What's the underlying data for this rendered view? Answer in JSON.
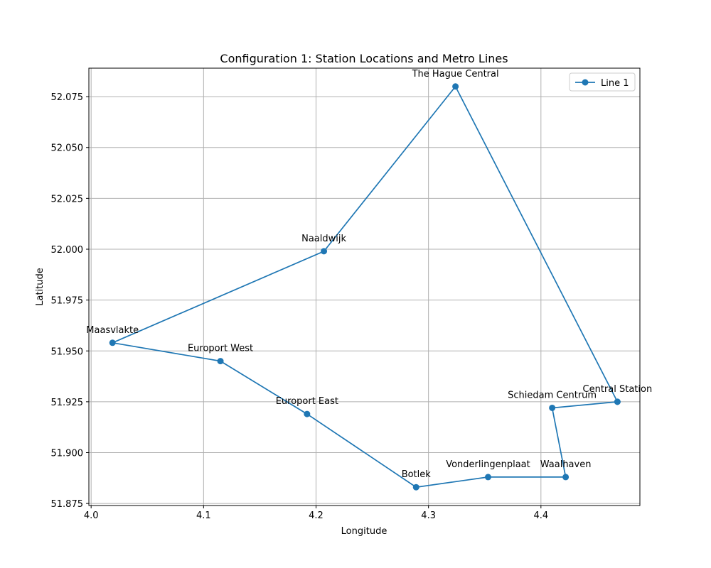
{
  "chart_data": {
    "type": "line",
    "title": "Configuration 1: Station Locations and Metro Lines",
    "xlabel": "Longitude",
    "ylabel": "Latitude",
    "xlim": [
      3.998,
      4.488
    ],
    "ylim": [
      51.874,
      52.089
    ],
    "x_ticks": [
      4.0,
      4.1,
      4.2,
      4.3,
      4.4
    ],
    "x_tick_labels": [
      "4.0",
      "4.1",
      "4.2",
      "4.3",
      "4.4"
    ],
    "y_ticks": [
      51.875,
      51.9,
      51.925,
      51.95,
      51.975,
      52.0,
      52.025,
      52.05,
      52.075
    ],
    "y_tick_labels": [
      "51.875",
      "51.900",
      "51.925",
      "51.950",
      "51.975",
      "52.000",
      "52.025",
      "52.050",
      "52.075"
    ],
    "grid": true,
    "legend_position": "top-right",
    "series": [
      {
        "name": "Line 1",
        "color": "#1f77b4",
        "marker": "circle",
        "points": [
          {
            "label": "Central Station",
            "x": 4.468,
            "y": 51.925
          },
          {
            "label": "Schiedam Centrum",
            "x": 4.41,
            "y": 51.922
          },
          {
            "label": "Waalhaven",
            "x": 4.422,
            "y": 51.888
          },
          {
            "label": "Vonderlingenplaat",
            "x": 4.353,
            "y": 51.888
          },
          {
            "label": "Botlek",
            "x": 4.289,
            "y": 51.883
          },
          {
            "label": "Europort East",
            "x": 4.192,
            "y": 51.919
          },
          {
            "label": "Europort West",
            "x": 4.115,
            "y": 51.945
          },
          {
            "label": "Maasvlakte",
            "x": 4.019,
            "y": 51.954
          },
          {
            "label": "Naaldwijk",
            "x": 4.207,
            "y": 51.999
          },
          {
            "label": "The Hague Central",
            "x": 4.324,
            "y": 52.08
          },
          {
            "label": "Central Station",
            "x": 4.468,
            "y": 51.925
          }
        ]
      }
    ],
    "annotations": [
      {
        "text": "The Hague Central",
        "x": 4.324,
        "y": 52.08
      },
      {
        "text": "Naaldwijk",
        "x": 4.207,
        "y": 51.999
      },
      {
        "text": "Maasvlakte",
        "x": 4.019,
        "y": 51.954
      },
      {
        "text": "Europort West",
        "x": 4.115,
        "y": 51.945
      },
      {
        "text": "Europort East",
        "x": 4.192,
        "y": 51.919
      },
      {
        "text": "Schiedam Centrum",
        "x": 4.41,
        "y": 51.922
      },
      {
        "text": "Central Station",
        "x": 4.468,
        "y": 51.925
      },
      {
        "text": "Vonderlingenplaat",
        "x": 4.353,
        "y": 51.888
      },
      {
        "text": "Waalhaven",
        "x": 4.422,
        "y": 51.888
      },
      {
        "text": "Botlek",
        "x": 4.289,
        "y": 51.883
      }
    ]
  }
}
